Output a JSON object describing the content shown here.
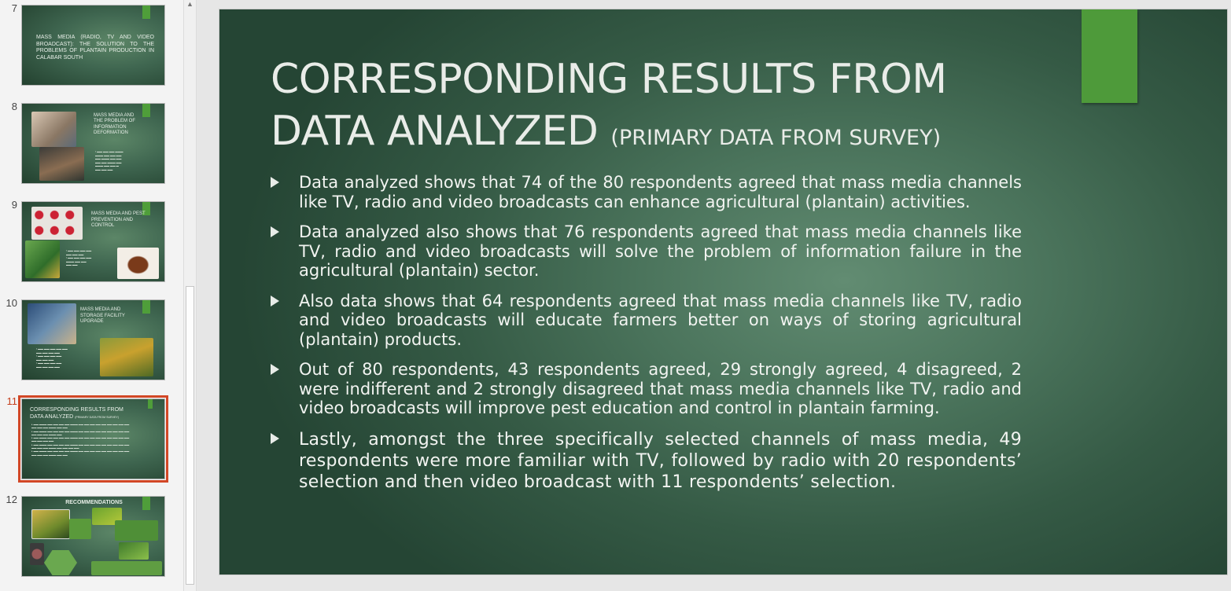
{
  "thumbnails": [
    {
      "number": "7",
      "title": "MASS MEDIA (RADIO, TV AND VIDEO BROADCAST): THE SOLUTION TO THE PROBLEMS OF PLANTAIN PRODUCTION IN CALABAR SOUTH"
    },
    {
      "number": "8",
      "title": "MASS MEDIA AND THE PROBLEM OF INFORMATION DEFORMATION"
    },
    {
      "number": "9",
      "title": "MASS MEDIA AND PEST PREVENTION AND CONTROL"
    },
    {
      "number": "10",
      "title": "MASS MEDIA AND STORAGE FACILITY UPGRADE"
    },
    {
      "number": "11",
      "title": "CORRESPONDING RESULTS FROM DATA ANALYZED",
      "subtitle": "(PRIMARY DATA FROM SURVEY)"
    },
    {
      "number": "12",
      "title": "RECOMMENDATIONS"
    }
  ],
  "slide": {
    "title_main": "CORRESPONDING RESULTS FROM DATA ANALYZED",
    "title_sub": "(PRIMARY DATA FROM SURVEY)",
    "bullets": [
      "Data analyzed shows that 74 of the 80 respondents agreed that mass media channels like TV, radio and video broadcasts can enhance agricultural (plantain) activities.",
      "Data analyzed also shows that 76 respondents agreed that mass media channels like TV, radio and video broadcasts will solve the problem of information failure in the agricultural (plantain) sector.",
      "Also data shows that 64 respondents agreed that mass media channels like TV, radio and video broadcasts will educate farmers better on ways of storing agricultural (plantain) products.",
      "Out of 80 respondents, 43 respondents agreed, 29 strongly agreed, 4 disagreed, 2 were indifferent and 2 strongly disagreed that mass media channels like TV, radio and video broadcasts will improve pest education and control in plantain farming.",
      "Lastly, amongst the three specifically selected channels of mass media, 49 respondents were more familiar with TV, followed by radio with 20 respondents’ selection and then video broadcast with 11 respondents’ selection."
    ]
  },
  "colors": {
    "slide_background": "#3f6650",
    "accent_green": "#4e9a3a",
    "selected_thumbnail_border": "#d24726",
    "selected_number": "#c43e1c"
  }
}
